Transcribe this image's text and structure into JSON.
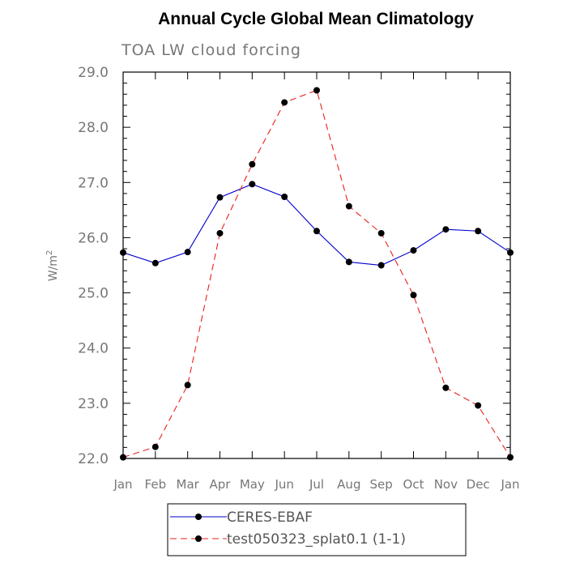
{
  "chart_data": {
    "type": "line",
    "title": "Annual Cycle Global Mean Climatology",
    "subtitle": "TOA LW cloud forcing",
    "ylabel": "W/m",
    "ylabel_superscript": "2",
    "xlabel": "",
    "ylim": [
      22.0,
      29.0
    ],
    "yticks": [
      "22.0",
      "23.0",
      "24.0",
      "25.0",
      "26.0",
      "27.0",
      "28.0",
      "29.0"
    ],
    "categories": [
      "Jan",
      "Feb",
      "Mar",
      "Apr",
      "May",
      "Jun",
      "Jul",
      "Aug",
      "Sep",
      "Oct",
      "Nov",
      "Dec",
      "Jan"
    ],
    "legend_position": "bottom",
    "grid": false,
    "series": [
      {
        "name": "CERES-EBAF",
        "color": "#0000cc",
        "dash": "solid",
        "values": [
          25.73,
          25.54,
          25.74,
          26.73,
          26.97,
          26.74,
          26.12,
          25.56,
          25.5,
          25.77,
          26.15,
          26.12,
          25.73
        ]
      },
      {
        "name": "test050323_splat0.1 (1-1)",
        "color": "#e8201c",
        "dash": "dashed",
        "values": [
          22.02,
          22.21,
          23.33,
          26.08,
          27.33,
          28.45,
          28.67,
          26.57,
          26.08,
          24.96,
          23.28,
          22.96,
          22.02
        ]
      }
    ]
  }
}
